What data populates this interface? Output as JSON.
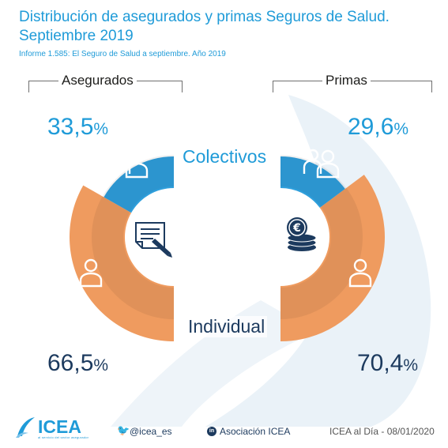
{
  "header": {
    "title": "Distribución de asegurados y primas Seguros de Salud. Septiembre 2019",
    "subtitle": "Informe 1.585: El Seguro de Salud a septiembre. Año 2019"
  },
  "colors": {
    "colectivos": "#2f9fdc",
    "individual": "#ef9b5f",
    "accent": "#1f9bd8",
    "navy": "#1c3a5e"
  },
  "chart_data": {
    "type": "pie",
    "categories": [
      "Colectivos",
      "Individual"
    ],
    "charts": [
      {
        "title": "Asegurados",
        "values": [
          33.5,
          66.5
        ],
        "labels": [
          "33,5",
          "66,5"
        ],
        "unit": "%"
      },
      {
        "title": "Primas",
        "values": [
          29.6,
          70.4
        ],
        "labels": [
          "29,6",
          "70,4"
        ],
        "unit": "%"
      }
    ],
    "center_icons": [
      "document-signature-icon",
      "euro-coins-icon"
    ],
    "segment_icons": [
      "people-group-icon",
      "person-icon"
    ]
  },
  "footer": {
    "logo_text": "ICEA",
    "logo_tagline": "al servicio del sector asegurador",
    "twitter": "@icea_es",
    "linkedin_icon": "in",
    "linkedin": "Asociación ICEA",
    "credit": "ICEA al Día - 08/01/2020"
  }
}
